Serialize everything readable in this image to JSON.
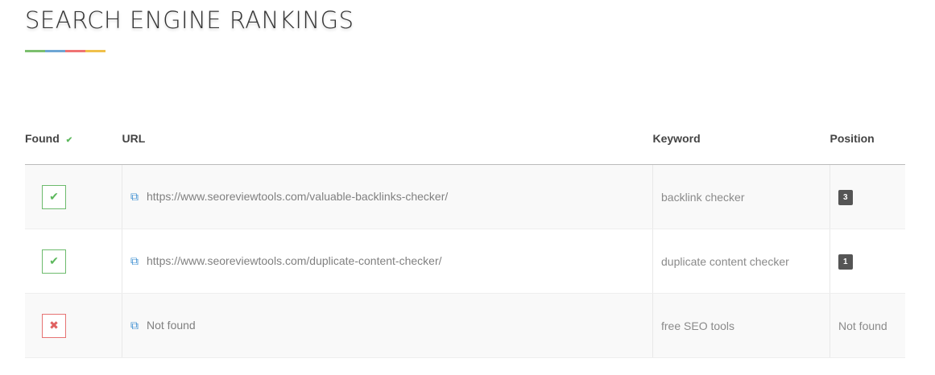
{
  "title": "SEARCH ENGINE RANKINGS",
  "underline_colors": [
    "#7cbf6e",
    "#6ea6d4",
    "#ef7373",
    "#f0c04b"
  ],
  "headers": {
    "found": "Found",
    "url": "URL",
    "keyword": "Keyword",
    "position": "Position"
  },
  "rows": [
    {
      "found": true,
      "url": "https://www.seoreviewtools.com/valuable-backlinks-checker/",
      "keyword": "backlink checker",
      "position": "3"
    },
    {
      "found": true,
      "url": "https://www.seoreviewtools.com/duplicate-content-checker/",
      "keyword": "duplicate content checker",
      "position": "1"
    },
    {
      "found": false,
      "url": "Not found",
      "keyword": "free SEO tools",
      "position": "Not found"
    }
  ]
}
